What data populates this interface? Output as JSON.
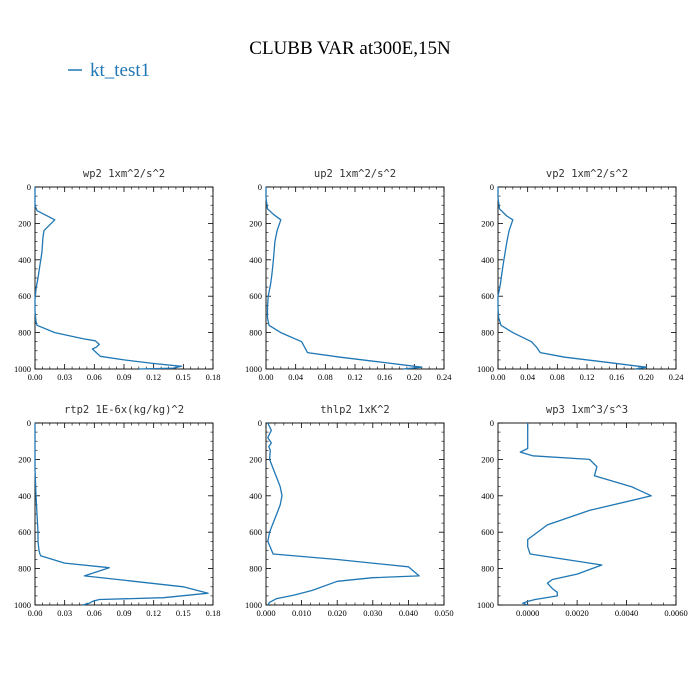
{
  "figure": {
    "suptitle": "CLUBB VAR at300E,15N",
    "legend": [
      {
        "label": "kt_test1",
        "color": "#1f77b4"
      }
    ]
  },
  "chart_data": [
    {
      "type": "line",
      "title": "wp2  1xm^2/s^2",
      "series": [
        {
          "name": "kt_test1",
          "color": "#1f77b4",
          "x": [
            0.0,
            0.0,
            0.0,
            0.002,
            0.02,
            0.009,
            0.008,
            0.007,
            0.005,
            0.003,
            0.001,
            0.0,
            0.0,
            0.001,
            0.002,
            0.02,
            0.05,
            0.061,
            0.065,
            0.062,
            0.058,
            0.066,
            0.09,
            0.12,
            0.148,
            0.14,
            0.105
          ],
          "y": [
            0,
            50,
            100,
            130,
            180,
            240,
            280,
            360,
            430,
            500,
            560,
            620,
            680,
            740,
            760,
            800,
            835,
            845,
            865,
            880,
            890,
            930,
            950,
            970,
            985,
            995,
            1000
          ]
        }
      ],
      "xticks": [
        "0.00",
        "0.03",
        "0.06",
        "0.09",
        "0.12",
        "0.15",
        "0.18"
      ],
      "yticks": [
        "0",
        "200",
        "400",
        "600",
        "800",
        "1000"
      ],
      "xlim": [
        0,
        0.18
      ],
      "ylim": [
        1000,
        0
      ]
    },
    {
      "type": "line",
      "title": "up2  1xm^2/s^2",
      "series": [
        {
          "name": "kt_test1",
          "color": "#1f77b4",
          "x": [
            0.0,
            0.0,
            0.002,
            0.01,
            0.02,
            0.015,
            0.012,
            0.01,
            0.008,
            0.006,
            0.003,
            0.002,
            0.002,
            0.004,
            0.02,
            0.048,
            0.052,
            0.056,
            0.1,
            0.15,
            0.21,
            0.185
          ],
          "y": [
            0,
            60,
            120,
            150,
            180,
            240,
            300,
            400,
            480,
            540,
            600,
            660,
            720,
            760,
            800,
            850,
            880,
            910,
            935,
            960,
            990,
            1000
          ]
        }
      ],
      "xticks": [
        "0.00",
        "0.04",
        "0.08",
        "0.12",
        "0.16",
        "0.20",
        "0.24"
      ],
      "yticks": [
        "0",
        "200",
        "400",
        "600",
        "800",
        "1000"
      ],
      "xlim": [
        0,
        0.24
      ],
      "ylim": [
        1000,
        0
      ]
    },
    {
      "type": "line",
      "title": "vp2  1xm^2/s^2",
      "series": [
        {
          "name": "kt_test1",
          "color": "#1f77b4",
          "x": [
            0.0,
            0.0,
            0.002,
            0.012,
            0.02,
            0.015,
            0.012,
            0.008,
            0.005,
            0.003,
            0.0,
            0.0,
            0.001,
            0.004,
            0.02,
            0.045,
            0.052,
            0.057,
            0.09,
            0.14,
            0.2,
            0.185
          ],
          "y": [
            0,
            60,
            120,
            160,
            180,
            240,
            300,
            400,
            480,
            540,
            600,
            660,
            720,
            760,
            800,
            850,
            880,
            910,
            935,
            960,
            990,
            1000
          ]
        }
      ],
      "xticks": [
        "0.00",
        "0.04",
        "0.08",
        "0.12",
        "0.16",
        "0.20",
        "0.24"
      ],
      "yticks": [
        "0",
        "200",
        "400",
        "600",
        "800",
        "1000"
      ],
      "xlim": [
        0,
        0.24
      ],
      "ylim": [
        1000,
        0
      ]
    },
    {
      "type": "line",
      "title": "rtp2  1E-6x(kg/kg)^2",
      "series": [
        {
          "name": "kt_test1",
          "color": "#1f77b4",
          "x": [
            0.0,
            0.0,
            0.0,
            0.001,
            0.002,
            0.003,
            0.003,
            0.004,
            0.005,
            0.006,
            0.03,
            0.075,
            0.05,
            0.1,
            0.15,
            0.175,
            0.13,
            0.065,
            0.058,
            0.055,
            0.048
          ],
          "y": [
            0,
            100,
            250,
            400,
            500,
            600,
            650,
            700,
            720,
            730,
            770,
            795,
            840,
            870,
            900,
            935,
            960,
            970,
            980,
            990,
            1000
          ]
        }
      ],
      "xticks": [
        "0.00",
        "0.03",
        "0.06",
        "0.09",
        "0.12",
        "0.15",
        "0.18"
      ],
      "yticks": [
        "0",
        "200",
        "400",
        "600",
        "800",
        "1000"
      ],
      "xlim": [
        0,
        0.18
      ],
      "ylim": [
        1000,
        0
      ]
    },
    {
      "type": "line",
      "title": "thlp2  1xK^2",
      "series": [
        {
          "name": "kt_test1",
          "color": "#1f77b4",
          "x": [
            0.0005,
            0.0015,
            0.0005,
            0.0015,
            0.0008,
            0.0012,
            0.001,
            0.002,
            0.003,
            0.004,
            0.0045,
            0.004,
            0.003,
            0.002,
            0.001,
            0.0005,
            0.002,
            0.02,
            0.04,
            0.043,
            0.03,
            0.02,
            0.013,
            0.008,
            0.003,
            0.001,
            0.0005
          ],
          "y": [
            0,
            40,
            80,
            110,
            130,
            150,
            200,
            250,
            300,
            350,
            400,
            450,
            500,
            550,
            600,
            650,
            720,
            750,
            790,
            840,
            850,
            870,
            920,
            945,
            965,
            985,
            1000
          ]
        }
      ],
      "xticks": [
        "0.000",
        "0.010",
        "0.020",
        "0.030",
        "0.040",
        "0.050"
      ],
      "yticks": [
        "0",
        "200",
        "400",
        "600",
        "800",
        "1000"
      ],
      "xlim": [
        0,
        0.05
      ],
      "ylim": [
        1000,
        0
      ]
    },
    {
      "type": "line",
      "title": "wp3  1xm^3/s^3",
      "series": [
        {
          "name": "kt_test1",
          "color": "#1f77b4",
          "x": [
            0.0,
            0.0,
            0.0,
            0.0,
            -0.0003,
            0.0002,
            0.0025,
            0.0028,
            0.0027,
            0.0042,
            0.005,
            0.0025,
            0.0008,
            0.0,
            0.0,
            0.0001,
            0.003,
            0.002,
            0.001,
            0.0008,
            0.001,
            0.0012,
            0.0012,
            0.0003,
            0.0,
            -0.0002,
            0.0
          ],
          "y": [
            0,
            50,
            100,
            140,
            160,
            180,
            200,
            240,
            290,
            350,
            400,
            480,
            560,
            640,
            680,
            720,
            780,
            830,
            860,
            880,
            910,
            930,
            950,
            970,
            980,
            990,
            1000
          ]
        }
      ],
      "xticks": [
        "0.0000",
        "0.0020",
        "0.0040",
        "0.0060"
      ],
      "yticks": [
        "0",
        "200",
        "400",
        "600",
        "800",
        "1000"
      ],
      "xlim": [
        -0.0012,
        0.006
      ],
      "ylim": [
        1000,
        0
      ]
    }
  ]
}
